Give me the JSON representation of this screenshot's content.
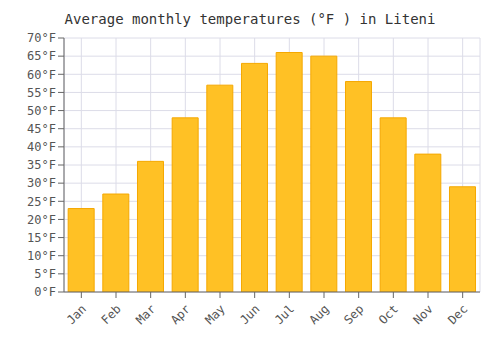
{
  "chart_data": {
    "type": "bar",
    "title": "Average monthly temperatures (°F ) in Liteni",
    "categories": [
      "Jan",
      "Feb",
      "Mar",
      "Apr",
      "May",
      "Jun",
      "Jul",
      "Aug",
      "Sep",
      "Oct",
      "Nov",
      "Dec"
    ],
    "values": [
      23,
      27,
      36,
      48,
      57,
      63,
      66,
      65,
      58,
      48,
      38,
      29
    ],
    "color": "#FFC125",
    "ylim": [
      0,
      70
    ],
    "yticks": [
      {
        "value": 0,
        "label": "0°F"
      },
      {
        "value": 5,
        "label": "5°F"
      },
      {
        "value": 10,
        "label": "10°F"
      },
      {
        "value": 15,
        "label": "15°F"
      },
      {
        "value": 20,
        "label": "20°F"
      },
      {
        "value": 25,
        "label": "25°F"
      },
      {
        "value": 30,
        "label": "30°F"
      },
      {
        "value": 35,
        "label": "35°F"
      },
      {
        "value": 40,
        "label": "40°F"
      },
      {
        "value": 45,
        "label": "45°F"
      },
      {
        "value": 50,
        "label": "50°F"
      },
      {
        "value": 55,
        "label": "55°F"
      },
      {
        "value": 60,
        "label": "60°F"
      },
      {
        "value": 65,
        "label": "65°F"
      },
      {
        "value": 70,
        "label": "70°F"
      }
    ],
    "grid": true
  }
}
